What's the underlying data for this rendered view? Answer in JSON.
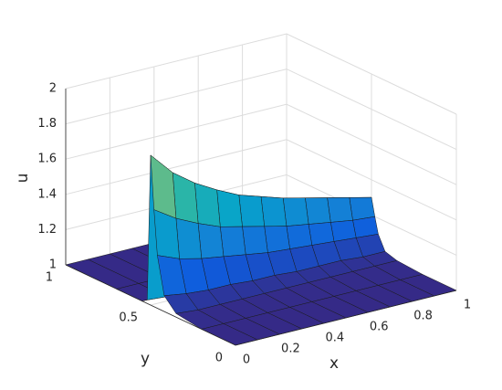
{
  "chart_data": {
    "type": "surface",
    "xlabel": "x",
    "ylabel": "y",
    "zlabel": "u",
    "x": [
      0,
      0.1,
      0.2,
      0.3,
      0.4,
      0.5,
      0.6,
      0.7,
      0.8,
      0.9,
      1
    ],
    "y": [
      0,
      0.2,
      0.35,
      0.42,
      0.46,
      0.48,
      0.5,
      0.52,
      0.55,
      0.7,
      1
    ],
    "z": [
      [
        1,
        1,
        1,
        1,
        1,
        1,
        1,
        1,
        1,
        1,
        1
      ],
      [
        1,
        1,
        1,
        1,
        1,
        1,
        1,
        1,
        1,
        1,
        1
      ],
      [
        1.02,
        1.01,
        1.01,
        1.01,
        1.01,
        1.01,
        1.01,
        1.01,
        1.01,
        1.01,
        1.01
      ],
      [
        1.09,
        1.07,
        1.06,
        1.06,
        1.05,
        1.05,
        1.04,
        1.04,
        1.04,
        1.03,
        1.03
      ],
      [
        1.3,
        1.25,
        1.22,
        1.2,
        1.18,
        1.16,
        1.15,
        1.14,
        1.13,
        1.12,
        1.11
      ],
      [
        1.55,
        1.47,
        1.41,
        1.36,
        1.33,
        1.3,
        1.27,
        1.25,
        1.23,
        1.21,
        1.2
      ],
      [
        1.85,
        1.72,
        1.63,
        1.56,
        1.5,
        1.46,
        1.42,
        1.39,
        1.36,
        1.33,
        1.3
      ],
      [
        1.02,
        1.01,
        1.01,
        1.01,
        1.01,
        1.01,
        1.01,
        1.01,
        1.01,
        1.01,
        1.01
      ],
      [
        1,
        1,
        1,
        1,
        1,
        1,
        1,
        1,
        1,
        1,
        1
      ],
      [
        1,
        1,
        1,
        1,
        1,
        1,
        1,
        1,
        1,
        1,
        1
      ],
      [
        1,
        1,
        1,
        1,
        1,
        1,
        1,
        1,
        1,
        1,
        1
      ]
    ],
    "xlim": [
      0,
      1
    ],
    "ylim": [
      0,
      1
    ],
    "zlim": [
      1,
      2
    ],
    "xticks": [
      0,
      0.2,
      0.4,
      0.6,
      0.8,
      1
    ],
    "yticks": [
      0,
      0.5,
      1
    ],
    "zticks": [
      1,
      1.2,
      1.4,
      1.6,
      1.8,
      2
    ],
    "grid": true,
    "colormap": [
      "#352a87",
      "#0f5cdd",
      "#1481d6",
      "#06a4ca",
      "#2eb7a4",
      "#87bf77",
      "#d1bb59",
      "#f9fb0e"
    ]
  }
}
